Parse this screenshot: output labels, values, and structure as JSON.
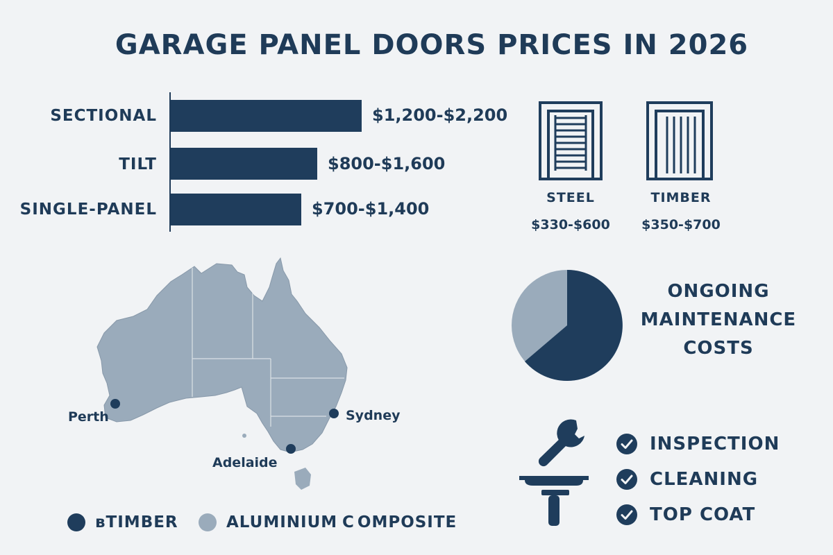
{
  "title": "GARAGE PANEL DOORS PRICES IN 2026",
  "colors": {
    "navy": "#1f3d5c",
    "slate": "#9aabbb",
    "background": "#f1f3f5"
  },
  "door_types": [
    {
      "label": "SECTIONAL",
      "price": "$1,200-$2,200"
    },
    {
      "label": "TILT",
      "price": "$800-$1,600"
    },
    {
      "label": "SINGLE-PANEL",
      "price": "$700-$1,400"
    }
  ],
  "materials": [
    {
      "name": "STEEL",
      "price": "$330-$600",
      "icon": "horizontal-slat-door-icon"
    },
    {
      "name": "TIMBER",
      "price": "$350-$700",
      "icon": "vertical-slat-door-icon"
    }
  ],
  "map": {
    "icon": "australia-map-icon",
    "cities": [
      "Perth",
      "Sydney",
      "Adelaide"
    ]
  },
  "maintenance": {
    "title_lines": [
      "ONGOING",
      "MAINTENANCE",
      "COSTS"
    ],
    "pie_icon": "pie-chart-icon",
    "tools_icon": "wrench-and-squeegee-icon",
    "tasks": [
      "INSPECTION",
      "CLEANING",
      "TOP COAT"
    ]
  },
  "legend": [
    {
      "label": "ʙTIMBER",
      "color": "#1f3d5c"
    },
    {
      "label": "ALUMINIUM",
      "color": "#9aabbb"
    },
    {
      "label": "OMPOSITE",
      "glyph": "C"
    }
  ]
}
